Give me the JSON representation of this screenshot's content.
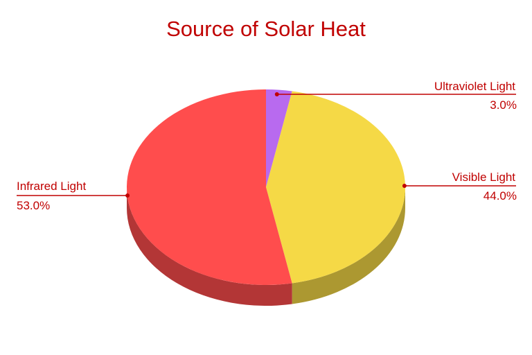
{
  "chart_data": {
    "type": "pie",
    "title": "Source of Solar Heat",
    "slices": [
      {
        "label": "Ultraviolet Light",
        "value": 3.0,
        "value_label": "3.0%",
        "color": "#b86aef"
      },
      {
        "label": "Visible Light",
        "value": 44.0,
        "value_label": "44.0%",
        "color": "#f5d946"
      },
      {
        "label": "Infrared Light",
        "value": 53.0,
        "value_label": "53.0%",
        "color": "#ff4d4d"
      }
    ],
    "style": "3d",
    "label_color": "#c00000"
  }
}
